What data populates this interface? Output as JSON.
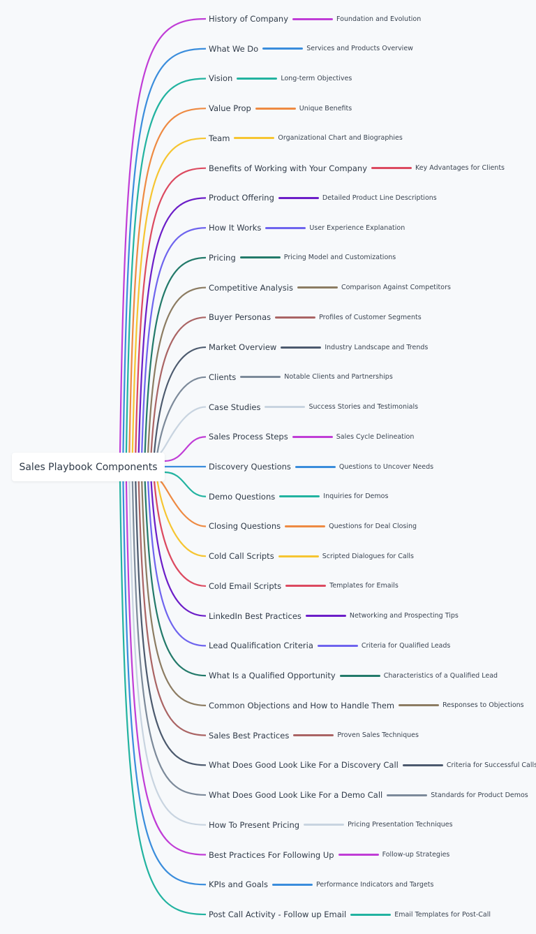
{
  "root": {
    "label": "Sales Playbook Components"
  },
  "branches": [
    {
      "label": "History of Company",
      "child": "Foundation and Evolution",
      "color": "#c03dd6"
    },
    {
      "label": "What We Do",
      "child": "Services and Products Overview",
      "color": "#3a8ddc"
    },
    {
      "label": "Vision",
      "child": "Long-term Objectives",
      "color": "#22b3a0"
    },
    {
      "label": "Value Prop",
      "child": "Unique Benefits",
      "color": "#ee8a42"
    },
    {
      "label": "Team",
      "child": "Organizational Chart and Biographies",
      "color": "#f6c531"
    },
    {
      "label": "Benefits of Working with Your Company",
      "child": "Key Advantages for Clients",
      "color": "#dc4a60"
    },
    {
      "label": "Product Offering",
      "child": "Detailed Product Line Descriptions",
      "color": "#6c1ec8"
    },
    {
      "label": "How It Works",
      "child": "User Experience Explanation",
      "color": "#6e64ee"
    },
    {
      "label": "Pricing",
      "child": "Pricing Model and Customizations",
      "color": "#237a6a"
    },
    {
      "label": "Competitive Analysis",
      "child": "Comparison Against Competitors",
      "color": "#8c7c62"
    },
    {
      "label": "Buyer Personas",
      "child": "Profiles of Customer Segments",
      "color": "#aa6464"
    },
    {
      "label": "Market Overview",
      "child": "Industry Landscape and Trends",
      "color": "#4c5a6e"
    },
    {
      "label": "Clients",
      "child": "Notable Clients and Partnerships",
      "color": "#7c8a9a"
    },
    {
      "label": "Case Studies",
      "child": "Success Stories and Testimonials",
      "color": "#c8d4e0"
    },
    {
      "label": "Sales Process Steps",
      "child": "Sales Cycle Delineation",
      "color": "#c03dd6"
    },
    {
      "label": "Discovery Questions",
      "child": "Questions to Uncover Needs",
      "color": "#3a8ddc"
    },
    {
      "label": "Demo Questions",
      "child": "Inquiries for Demos",
      "color": "#22b3a0"
    },
    {
      "label": "Closing Questions",
      "child": "Questions for Deal Closing",
      "color": "#ee8a42"
    },
    {
      "label": "Cold Call Scripts",
      "child": "Scripted Dialogues for Calls",
      "color": "#f6c531"
    },
    {
      "label": "Cold Email Scripts",
      "child": "Templates for Emails",
      "color": "#dc4a60"
    },
    {
      "label": "LinkedIn Best Practices",
      "child": "Networking and Prospecting Tips",
      "color": "#6c1ec8"
    },
    {
      "label": "Lead Qualification Criteria",
      "child": "Criteria for Qualified Leads",
      "color": "#6e64ee"
    },
    {
      "label": "What Is a Qualified Opportunity",
      "child": "Characteristics of a Qualified Lead",
      "color": "#237a6a"
    },
    {
      "label": "Common Objections and How to Handle Them",
      "child": "Responses to Objections",
      "color": "#8c7c62"
    },
    {
      "label": "Sales Best Practices",
      "child": "Proven Sales Techniques",
      "color": "#aa6464"
    },
    {
      "label": "What Does Good Look Like For a Discovery Call",
      "child": "Criteria for Successful Calls",
      "color": "#4c5a6e"
    },
    {
      "label": "What Does Good Look Like For a Demo Call",
      "child": "Standards for Product Demos",
      "color": "#7c8a9a"
    },
    {
      "label": "How To Present Pricing",
      "child": "Pricing Presentation Techniques",
      "color": "#c8d4e0"
    },
    {
      "label": "Best Practices For Following Up",
      "child": "Follow-up Strategies",
      "color": "#c03dd6"
    },
    {
      "label": "KPIs and Goals",
      "child": "Performance Indicators and Targets",
      "color": "#3a8ddc"
    },
    {
      "label": "Post Call Activity - Follow up Email",
      "child": "Email Templates for Post-Call",
      "color": "#22b3a0"
    }
  ]
}
